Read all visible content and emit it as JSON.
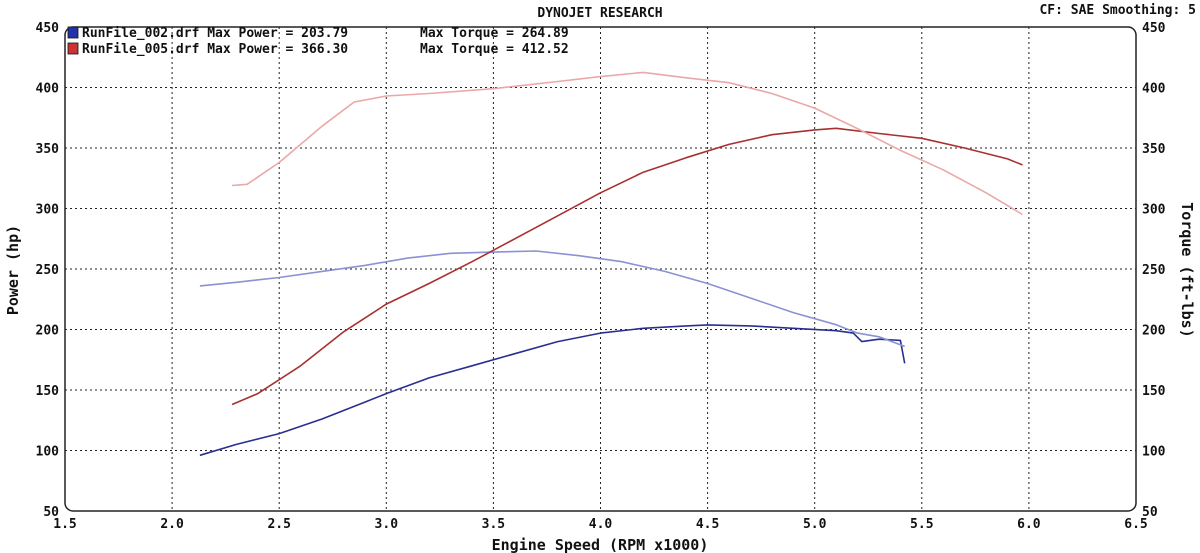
{
  "chart_data": {
    "type": "line",
    "title": "DYNOJET RESEARCH",
    "correction": "CF: SAE  Smoothing: 5",
    "xlabel": "Engine Speed (RPM x1000)",
    "ylabel_left": "Power (hp)",
    "ylabel_right": "Torque (ft-lbs)",
    "xlim": [
      1.5,
      6.5
    ],
    "ylim": [
      50,
      450
    ],
    "x_ticks": [
      "1.5",
      "2.0",
      "2.5",
      "3.0",
      "3.5",
      "4.0",
      "4.5",
      "5.0",
      "5.5",
      "6.0",
      "6.5"
    ],
    "y_ticks": [
      "50",
      "100",
      "150",
      "200",
      "250",
      "300",
      "350",
      "400",
      "450"
    ],
    "grid": true,
    "legend": [
      {
        "label": "RunFile_002.drf Max Power = 203.79",
        "torque_label": "Max Torque = 264.89",
        "color": "#2233aa"
      },
      {
        "label": "RunFile_005.drf Max Power = 366.30",
        "torque_label": "Max Torque = 412.52",
        "color": "#cc3333"
      }
    ],
    "series": [
      {
        "file": "RunFile_002.drf",
        "measure": "Power",
        "axis": "left",
        "color": "#28308f",
        "points": [
          [
            2.13,
            96
          ],
          [
            2.3,
            105
          ],
          [
            2.5,
            114
          ],
          [
            2.7,
            126
          ],
          [
            2.9,
            140
          ],
          [
            3.0,
            147
          ],
          [
            3.2,
            160
          ],
          [
            3.4,
            170
          ],
          [
            3.6,
            180
          ],
          [
            3.8,
            190
          ],
          [
            4.0,
            197
          ],
          [
            4.2,
            201
          ],
          [
            4.4,
            203
          ],
          [
            4.5,
            203.8
          ],
          [
            4.7,
            203
          ],
          [
            4.9,
            201
          ],
          [
            5.1,
            199
          ],
          [
            5.18,
            197
          ],
          [
            5.22,
            190
          ],
          [
            5.3,
            192
          ],
          [
            5.4,
            191
          ],
          [
            5.42,
            172
          ]
        ]
      },
      {
        "file": "RunFile_002.drf",
        "measure": "Torque",
        "axis": "right",
        "color": "#8a92d2",
        "points": [
          [
            2.13,
            236
          ],
          [
            2.3,
            239
          ],
          [
            2.5,
            243
          ],
          [
            2.7,
            248
          ],
          [
            2.9,
            253
          ],
          [
            3.1,
            259
          ],
          [
            3.3,
            263
          ],
          [
            3.5,
            264
          ],
          [
            3.7,
            264.9
          ],
          [
            3.9,
            261
          ],
          [
            4.1,
            256
          ],
          [
            4.3,
            248
          ],
          [
            4.5,
            238
          ],
          [
            4.7,
            226
          ],
          [
            4.9,
            214
          ],
          [
            5.1,
            204
          ],
          [
            5.2,
            197
          ],
          [
            5.3,
            194
          ],
          [
            5.42,
            186
          ]
        ]
      },
      {
        "file": "RunFile_005.drf",
        "measure": "Power",
        "axis": "left",
        "color": "#a83030",
        "points": [
          [
            2.28,
            138
          ],
          [
            2.4,
            147
          ],
          [
            2.6,
            170
          ],
          [
            2.8,
            198
          ],
          [
            3.0,
            221
          ],
          [
            3.2,
            238
          ],
          [
            3.4,
            256
          ],
          [
            3.6,
            275
          ],
          [
            3.8,
            294
          ],
          [
            4.0,
            313
          ],
          [
            4.2,
            330
          ],
          [
            4.4,
            342
          ],
          [
            4.6,
            353
          ],
          [
            4.8,
            361
          ],
          [
            5.0,
            365
          ],
          [
            5.1,
            366.3
          ],
          [
            5.3,
            362
          ],
          [
            5.5,
            358
          ],
          [
            5.7,
            350
          ],
          [
            5.9,
            341
          ],
          [
            5.97,
            336
          ]
        ]
      },
      {
        "file": "RunFile_005.drf",
        "measure": "Torque",
        "axis": "right",
        "color": "#eaa8a8",
        "points": [
          [
            2.28,
            319
          ],
          [
            2.35,
            320
          ],
          [
            2.5,
            338
          ],
          [
            2.7,
            368
          ],
          [
            2.85,
            388
          ],
          [
            3.0,
            393
          ],
          [
            3.2,
            395
          ],
          [
            3.5,
            399
          ],
          [
            3.8,
            405
          ],
          [
            4.0,
            409
          ],
          [
            4.2,
            412.5
          ],
          [
            4.4,
            408
          ],
          [
            4.6,
            404
          ],
          [
            4.8,
            395
          ],
          [
            5.0,
            383
          ],
          [
            5.2,
            366
          ],
          [
            5.4,
            348
          ],
          [
            5.6,
            332
          ],
          [
            5.8,
            313
          ],
          [
            5.97,
            295
          ]
        ]
      }
    ]
  }
}
